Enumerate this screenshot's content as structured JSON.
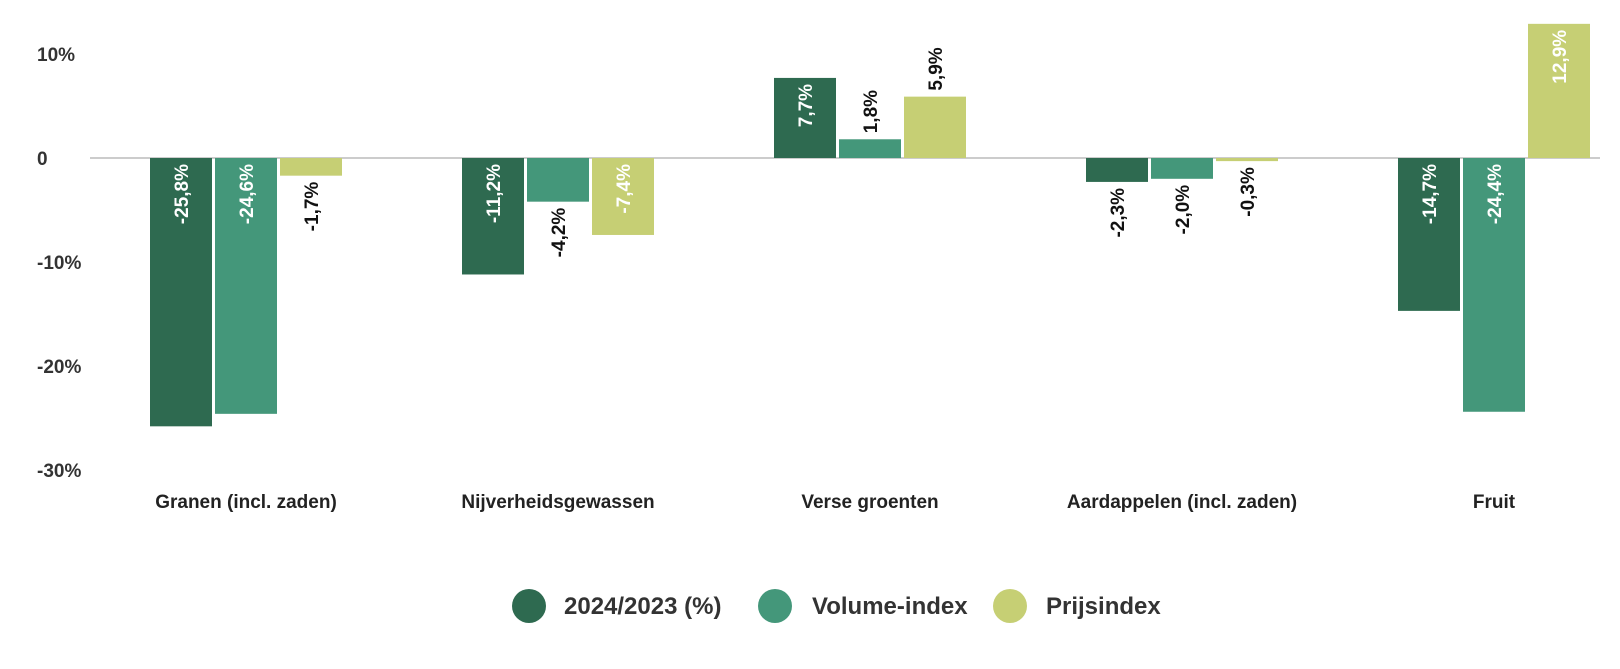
{
  "chart_data": {
    "type": "bar",
    "title": "",
    "xlabel": "",
    "ylabel": "",
    "ylim": [
      -30,
      10
    ],
    "y_ticks": [
      "10%",
      "0",
      "-10%",
      "-20%",
      "-30%"
    ],
    "categories": [
      "Granen (incl. zaden)",
      "Nijverheidsgewassen",
      "Verse groenten",
      "Aardappelen (incl. zaden)",
      "Fruit"
    ],
    "series": [
      {
        "name": "2024/2023 (%)",
        "color": "#2e6a50",
        "values": [
          -25.8,
          -11.2,
          7.7,
          -2.3,
          -14.7
        ],
        "labels": [
          "-25,8%",
          "-11,2%",
          "7,7%",
          "-2,3%",
          "-14,7%"
        ]
      },
      {
        "name": "Volume-index",
        "color": "#44977a",
        "values": [
          -24.6,
          -4.2,
          1.8,
          -2.0,
          -24.4
        ],
        "labels": [
          "-24,6%",
          "-4,2%",
          "1,8%",
          "-2,0%",
          "-24,4%"
        ]
      },
      {
        "name": "Prijsindex",
        "color": "#c6cf74",
        "values": [
          -1.7,
          -7.4,
          5.9,
          -0.3,
          12.9
        ],
        "labels": [
          "-1,7%",
          "-7,4%",
          "5,9%",
          "-0,3%",
          "12,9%"
        ]
      }
    ],
    "grid": false,
    "legend_position": "bottom"
  }
}
